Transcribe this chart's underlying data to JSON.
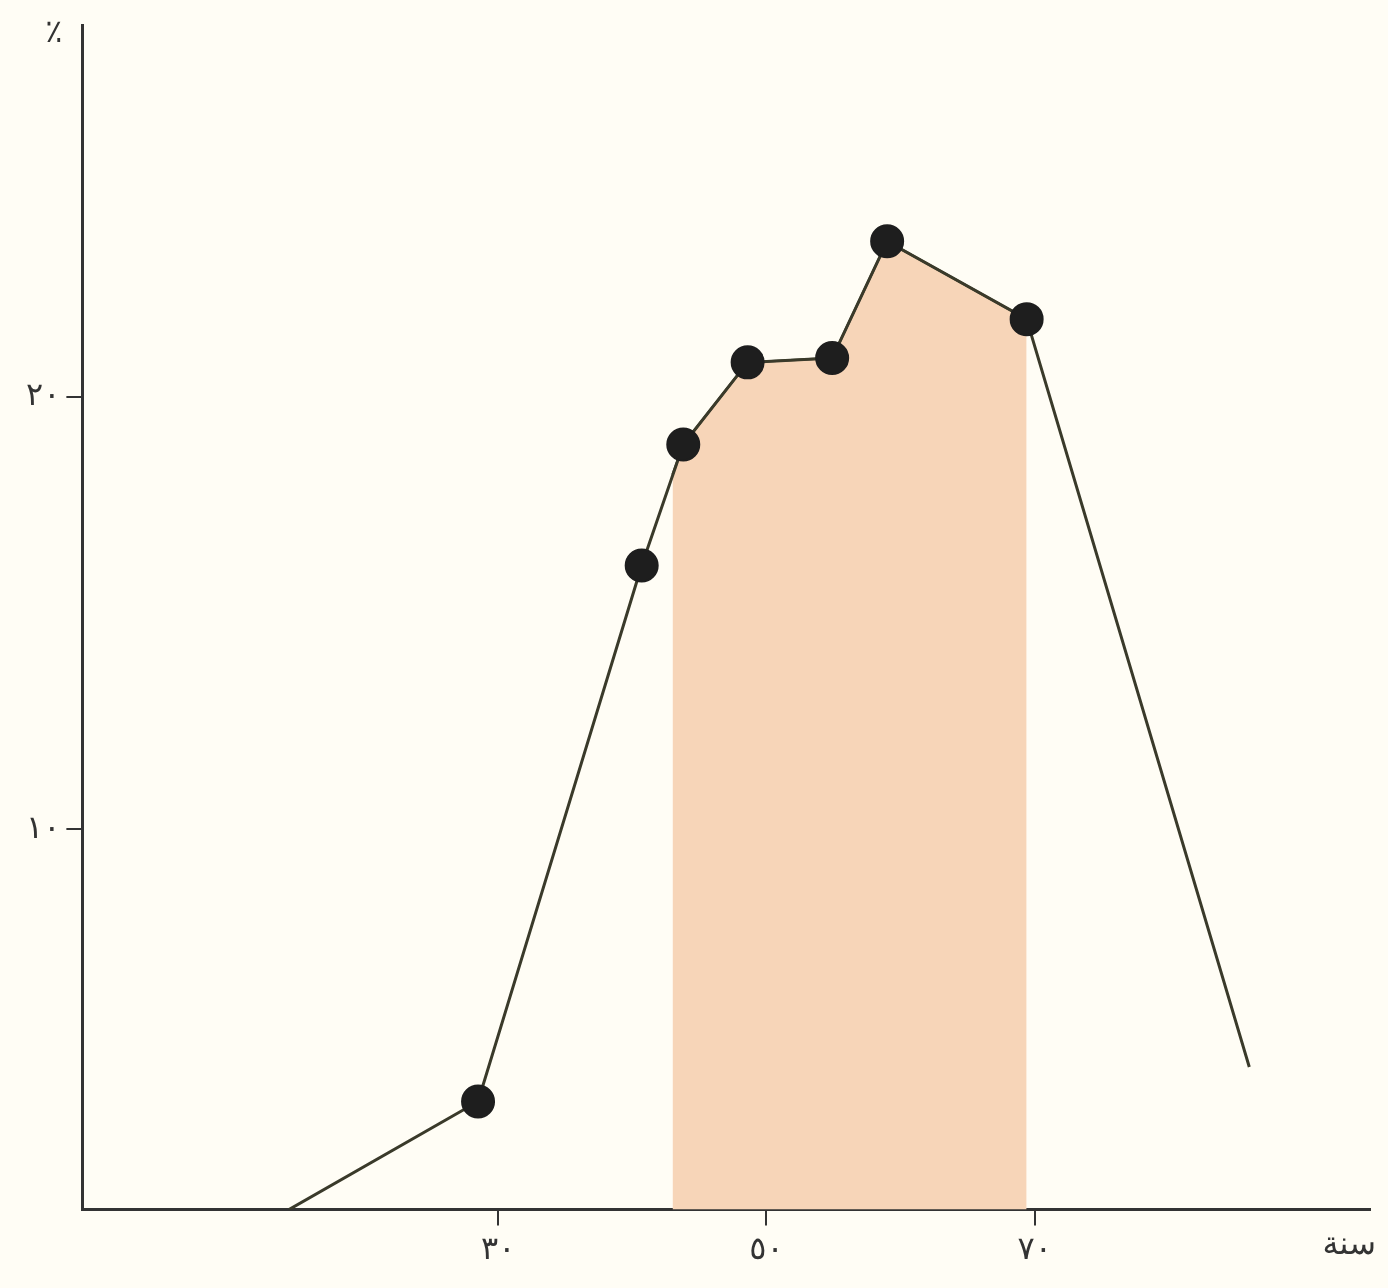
{
  "chart_data": {
    "type": "line",
    "xlabel": "سنة",
    "ylabel": "٪",
    "xlim": [
      -1,
      95
    ],
    "ylim": [
      1.2,
      28.6
    ],
    "xticks": [
      {
        "value": 30,
        "label": "٣٠"
      },
      {
        "value": 50,
        "label": "٥٠"
      },
      {
        "value": 70,
        "label": "٧٠"
      }
    ],
    "yticks": [
      {
        "value": 10,
        "label": "١٠"
      },
      {
        "value": 20,
        "label": "٢٠"
      }
    ],
    "grid": false,
    "legend": false,
    "series": [
      {
        "type": "area",
        "color": "#f7d5b8",
        "x": [
          43,
          43.8,
          48.6,
          54.9,
          59.0,
          69.4
        ],
        "values": [
          18.2,
          18.9,
          20.8,
          20.9,
          23.6,
          21.8
        ]
      },
      {
        "color": "#3a3a2a",
        "marker": "none",
        "x": [
          14.4,
          28.5,
          40.7,
          43.8,
          48.6,
          54.9,
          59.0,
          69.4,
          86.0
        ],
        "values": [
          1.2,
          3.7,
          16.1,
          18.9,
          20.8,
          20.9,
          23.6,
          21.8,
          4.5
        ]
      },
      {
        "type": "scatter",
        "color": "#1e1e1e",
        "marker": "circle",
        "x": [
          28.5,
          40.7,
          43.8,
          48.6,
          54.9,
          59.0,
          69.4
        ],
        "values": [
          3.7,
          16.1,
          18.9,
          20.8,
          20.9,
          23.6,
          21.8
        ]
      }
    ]
  }
}
